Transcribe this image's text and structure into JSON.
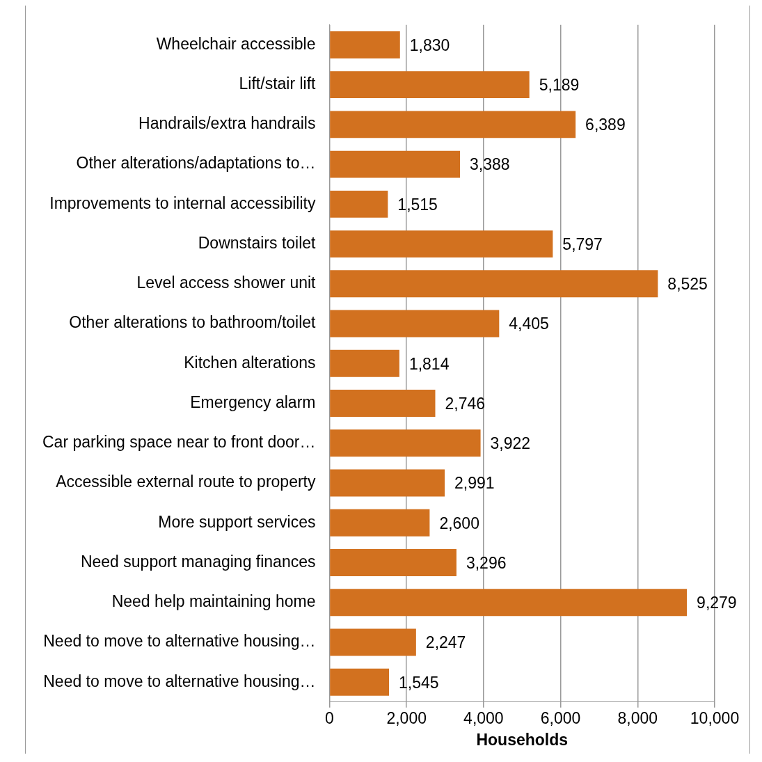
{
  "chart_data": {
    "type": "bar",
    "orientation": "horizontal",
    "xlabel": "Households",
    "categories": [
      "Wheelchair accessible",
      "Lift/stair lift",
      "Handrails/extra handrails",
      "Other alterations/adaptations to…",
      "Improvements to internal accessibility",
      "Downstairs toilet",
      "Level access shower unit",
      "Other alterations to bathroom/toilet",
      "Kitchen alterations",
      "Emergency alarm",
      "Car parking space near to front door…",
      "Accessible external route to property",
      "More support services",
      "Need support managing finances",
      "Need help maintaining home",
      "Need to move to alternative housing…",
      "Need to move to alternative housing…"
    ],
    "values": [
      1830,
      5189,
      6389,
      3388,
      1515,
      5797,
      8525,
      4405,
      1814,
      2746,
      3922,
      2991,
      2600,
      3296,
      9279,
      2247,
      1545
    ],
    "value_labels": [
      "1,830",
      "5,189",
      "6,389",
      "3,388",
      "1,515",
      "5,797",
      "8,525",
      "4,405",
      "1,814",
      "2,746",
      "3,922",
      "2,991",
      "2,600",
      "3,296",
      "9,279",
      "2,247",
      "1,545"
    ],
    "color": "#d2711f",
    "xlim": [
      0,
      10000
    ],
    "xticks": [
      0,
      {
        "value": 2000,
        "label": "2,000"
      },
      {
        "value": 4000,
        "label": "4,000"
      },
      {
        "value": 6000,
        "label": "6,000"
      },
      {
        "value": 8000,
        "label": "8,000"
      },
      {
        "value": 10000,
        "label": "10,000"
      }
    ],
    "grid": "x"
  }
}
